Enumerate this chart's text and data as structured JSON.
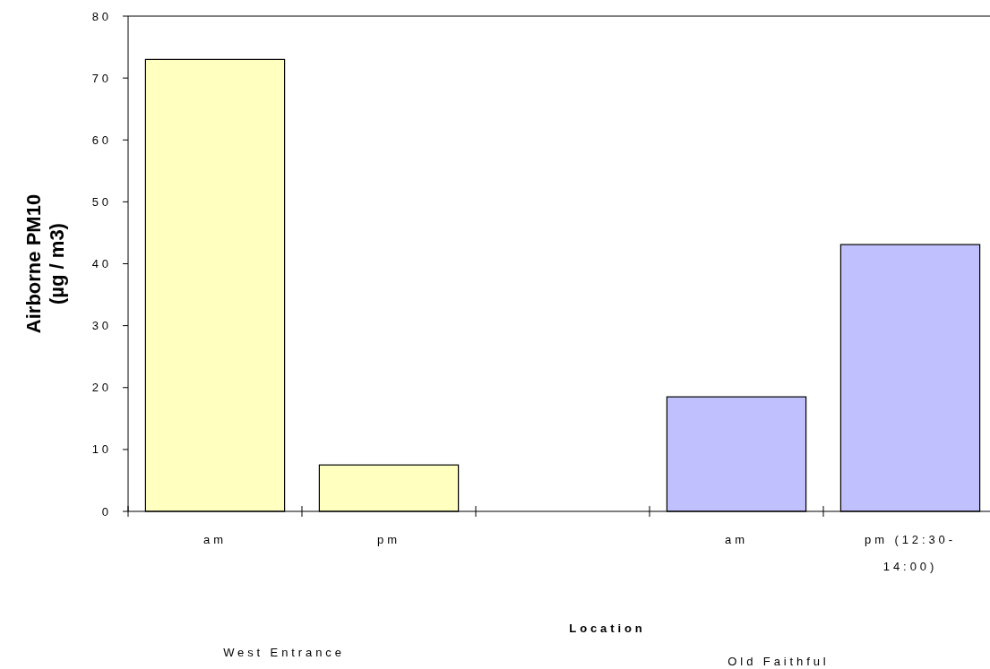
{
  "chart_data": {
    "type": "bar",
    "xlabel": "Location",
    "ylabel": "Airborne PM10\n(µg / m3)",
    "categories": [
      "am",
      "pm",
      null,
      "am",
      "pm (12:30-14:00)"
    ],
    "values": [
      73,
      7.5,
      null,
      18.5,
      43.1
    ],
    "colors": [
      "#ffffc0",
      "#ffffc0",
      null,
      "#c0c0ff",
      "#c0c0ff"
    ],
    "ylim": [
      0,
      80
    ],
    "yticks": [
      0,
      10,
      20,
      30,
      40,
      50,
      60,
      70,
      80
    ],
    "grid": false,
    "annotations": [
      "West Entrance",
      "Old Faithful"
    ]
  }
}
